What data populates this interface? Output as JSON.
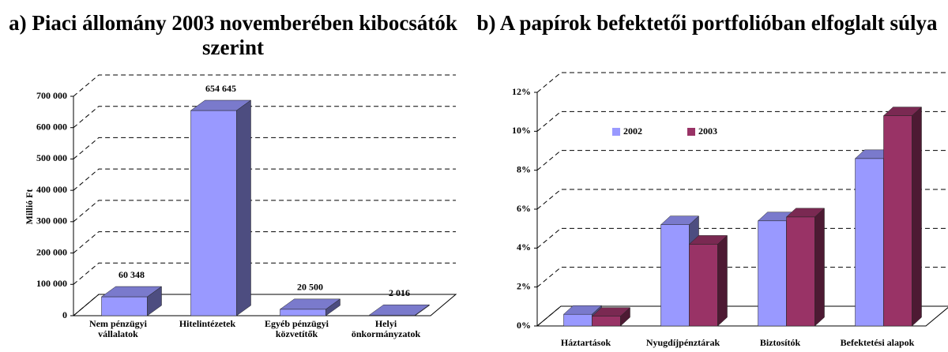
{
  "chart_data": [
    {
      "type": "bar3d",
      "title": "a) Piaci állomány 2003 novemberében kibocsátók szerint",
      "y_label": "Millió Ft",
      "categories": [
        "Nem pénzügyi vállalatok",
        "Hitelintézetek",
        "Egyéb pénzügyi közvetítők",
        "Helyi önkormányzatok"
      ],
      "series": [
        {
          "color": "#9999ff",
          "values": [
            60348,
            654645,
            20500,
            2016
          ],
          "value_labels": [
            "60 348",
            "654 645",
            "20 500",
            "2 016"
          ]
        }
      ],
      "ylim": [
        0,
        700000
      ],
      "yticks": [
        0,
        {
          "value": 100000,
          "label": "100 000"
        },
        {
          "value": 200000,
          "label": "200 000"
        },
        {
          "value": 300000,
          "label": "300 000"
        },
        {
          "value": 400000,
          "label": "400 000"
        },
        {
          "value": 500000,
          "label": "500 000"
        },
        {
          "value": 600000,
          "label": "600 000"
        },
        {
          "value": 700000,
          "label": "700 000"
        }
      ],
      "grid": true
    },
    {
      "type": "bar3d",
      "title": "b) A papírok befektetői portfolióban elfoglalt súlya",
      "categories": [
        "Háztartások",
        "Nyugdíjpénztárak",
        "Biztosítók",
        "Befektetési alapok"
      ],
      "series": [
        {
          "name": "2002",
          "color": "#9999ff",
          "values": [
            0.6,
            5.2,
            5.4,
            8.6
          ]
        },
        {
          "name": "2003",
          "color": "#993366",
          "values": [
            0.5,
            4.2,
            5.6,
            10.8
          ]
        }
      ],
      "ylim": [
        0,
        12
      ],
      "yticks": [
        {
          "value": 0,
          "label": "0%"
        },
        {
          "value": 2,
          "label": "2%"
        },
        {
          "value": 4,
          "label": "4%"
        },
        {
          "value": 6,
          "label": "6%"
        },
        {
          "value": 8,
          "label": "8%"
        },
        {
          "value": 10,
          "label": "10%"
        },
        {
          "value": 12,
          "label": "12%"
        }
      ],
      "legend": "top-left",
      "grid": true
    }
  ]
}
